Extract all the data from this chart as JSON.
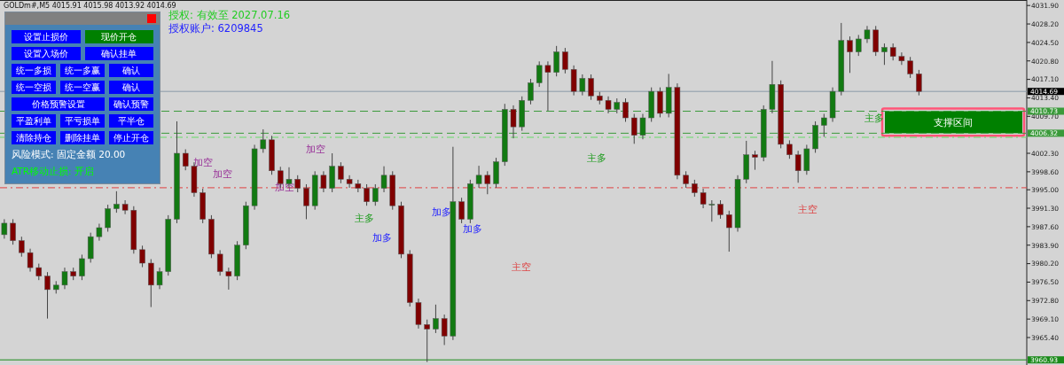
{
  "chart_data": {
    "type": "candlestick",
    "title": "GOLDm#,M5 4015.91 4015.98 4013.92 4014.69",
    "subtitle": "授权: 有效至 2027.07.16",
    "categories": [
      null,
      null,
      null,
      null,
      null,
      null,
      null,
      null,
      null,
      null,
      null,
      null,
      null,
      null,
      null,
      null,
      null,
      null,
      null,
      null,
      null,
      null,
      null,
      null,
      null,
      null,
      null,
      null,
      null,
      null,
      null,
      null,
      null,
      null,
      null,
      null,
      null,
      null,
      null,
      null,
      null,
      null,
      null,
      null,
      null,
      null,
      null,
      null,
      null,
      null,
      null,
      null,
      null,
      null,
      null,
      null,
      null,
      null,
      null,
      null,
      null,
      null,
      null,
      null,
      null,
      null,
      null,
      null,
      null,
      null,
      null,
      null,
      null,
      null,
      null,
      null,
      null,
      null,
      null,
      null,
      null,
      null,
      null,
      null,
      null,
      null,
      null,
      null,
      null,
      null,
      null,
      null,
      null,
      null,
      null,
      null,
      null,
      null,
      null,
      null,
      null,
      null,
      null,
      null,
      null,
      null,
      null,
      null,
      null,
      null,
      null,
      null,
      null,
      null,
      null,
      null,
      null,
      null,
      null
    ],
    "ohlc": [
      [
        3986.0,
        3989.1,
        3985.2,
        3988.3
      ],
      [
        3988.3,
        3989.1,
        3984.0,
        3984.8
      ],
      [
        3984.8,
        3985.6,
        3981.6,
        3982.4
      ],
      [
        3982.4,
        3983.2,
        3978.6,
        3979.4
      ],
      [
        3979.4,
        3980.2,
        3976.9,
        3977.7
      ],
      [
        3977.7,
        3978.5,
        3969.2,
        3975.0
      ],
      [
        3975.0,
        3976.7,
        3974.2,
        3975.9
      ],
      [
        3975.9,
        3979.4,
        3975.1,
        3978.6
      ],
      [
        3978.6,
        3979.4,
        3976.9,
        3977.7
      ],
      [
        3977.7,
        3982.0,
        3976.9,
        3981.2
      ],
      [
        3981.2,
        3986.4,
        3980.4,
        3985.6
      ],
      [
        3985.6,
        3988.2,
        3984.8,
        3987.4
      ],
      [
        3987.4,
        3992.0,
        3986.6,
        3991.2
      ],
      [
        3991.2,
        3994.7,
        3990.4,
        3992.1
      ],
      [
        3992.1,
        3992.9,
        3990.1,
        3990.9
      ],
      [
        3990.9,
        3991.7,
        3982.2,
        3983.0
      ],
      [
        3983.0,
        3983.8,
        3979.5,
        3980.3
      ],
      [
        3980.3,
        3981.1,
        3971.5,
        3975.9
      ],
      [
        3975.9,
        3979.4,
        3975.1,
        3978.6
      ],
      [
        3978.6,
        3989.9,
        3977.8,
        3989.1
      ],
      [
        3989.1,
        4008.7,
        3988.3,
        4002.3
      ],
      [
        4002.3,
        4003.1,
        3998.9,
        3999.7
      ],
      [
        3999.7,
        4000.5,
        3993.6,
        3994.4
      ],
      [
        3994.4,
        3995.2,
        3988.3,
        3989.1
      ],
      [
        3989.1,
        3989.9,
        3981.3,
        3982.1
      ],
      [
        3982.1,
        3982.9,
        3977.8,
        3978.6
      ],
      [
        3978.6,
        3979.4,
        3975.0,
        3977.7
      ],
      [
        3977.7,
        3984.7,
        3976.9,
        3983.9
      ],
      [
        3983.9,
        3992.6,
        3983.1,
        3991.8
      ],
      [
        3991.8,
        4004.0,
        3991.0,
        4003.2
      ],
      [
        4003.2,
        4007.1,
        4002.4,
        4005.0
      ],
      [
        4005.0,
        4005.8,
        3998.0,
        3998.8
      ],
      [
        3998.8,
        3999.6,
        3995.4,
        3996.2
      ],
      [
        3996.2,
        3999.5,
        3995.4,
        3997.1
      ],
      [
        3997.1,
        3997.9,
        3994.5,
        3995.3
      ],
      [
        3995.3,
        3996.1,
        3989.1,
        3991.8
      ],
      [
        3991.8,
        3998.7,
        3991.0,
        3997.9
      ],
      [
        3997.9,
        3998.7,
        3994.5,
        3995.3
      ],
      [
        3995.3,
        4002.3,
        3994.5,
        3999.7
      ],
      [
        3999.7,
        4000.5,
        3996.3,
        3997.1
      ],
      [
        3997.1,
        3997.9,
        3995.4,
        3996.2
      ],
      [
        3996.2,
        3997.0,
        3994.5,
        3995.3
      ],
      [
        3995.3,
        3996.1,
        3991.8,
        3992.6
      ],
      [
        3992.6,
        3996.1,
        3991.8,
        3995.3
      ],
      [
        3995.3,
        3999.7,
        3994.5,
        3997.9
      ],
      [
        3997.9,
        3998.7,
        3991.0,
        3991.8
      ],
      [
        3991.8,
        3992.6,
        3981.3,
        3982.1
      ],
      [
        3982.1,
        3982.9,
        3971.6,
        3972.4
      ],
      [
        3972.4,
        3973.2,
        3967.2,
        3968.0
      ],
      [
        3968.0,
        3969.0,
        3960.5,
        3967.1
      ],
      [
        3967.1,
        3972.0,
        3966.3,
        3969.2
      ],
      [
        3969.2,
        3970.0,
        3963.9,
        3965.7
      ],
      [
        3965.7,
        4003.6,
        3964.9,
        3992.6
      ],
      [
        3992.6,
        3993.4,
        3988.3,
        3989.1
      ],
      [
        3989.1,
        3997.0,
        3988.3,
        3996.2
      ],
      [
        3996.2,
        3999.8,
        3995.4,
        3997.9
      ],
      [
        3997.9,
        3998.7,
        3994.1,
        3996.2
      ],
      [
        3996.2,
        4001.4,
        3995.4,
        4000.6
      ],
      [
        4000.6,
        4012.2,
        3999.8,
        4011.1
      ],
      [
        4011.1,
        4011.9,
        4005.3,
        4007.6
      ],
      [
        4007.6,
        4013.7,
        4006.8,
        4012.9
      ],
      [
        4012.9,
        4017.2,
        4012.1,
        4016.4
      ],
      [
        4016.4,
        4020.7,
        4015.6,
        4019.9
      ],
      [
        4019.9,
        4020.7,
        4010.8,
        4018.5
      ],
      [
        4018.5,
        4023.8,
        4017.7,
        4022.6
      ],
      [
        4022.6,
        4023.4,
        4018.3,
        4019.1
      ],
      [
        4019.1,
        4019.9,
        4013.9,
        4014.7
      ],
      [
        4014.7,
        4018.1,
        4013.9,
        4017.3
      ],
      [
        4017.3,
        4018.1,
        4013.0,
        4013.8
      ],
      [
        4013.8,
        4014.6,
        4012.1,
        4012.9
      ],
      [
        4012.9,
        4013.7,
        4010.3,
        4011.1
      ],
      [
        4011.1,
        4013.3,
        4010.3,
        4012.5
      ],
      [
        4012.5,
        4013.3,
        4008.6,
        4009.4
      ],
      [
        4009.4,
        4010.2,
        4004.2,
        4005.9
      ],
      [
        4005.9,
        4010.2,
        4005.1,
        4009.4
      ],
      [
        4009.4,
        4015.5,
        4008.6,
        4014.7
      ],
      [
        4014.7,
        4015.5,
        4009.5,
        4010.3
      ],
      [
        4010.3,
        4018.2,
        4009.5,
        4015.5
      ],
      [
        4015.5,
        4016.3,
        3997.1,
        3997.9
      ],
      [
        3997.9,
        3998.7,
        3995.4,
        3996.2
      ],
      [
        3996.2,
        3997.0,
        3993.6,
        3994.4
      ],
      [
        3994.4,
        3995.2,
        3991.3,
        3992.1
      ],
      [
        3992.1,
        3992.9,
        3988.6,
        3992.1
      ],
      [
        3992.1,
        3992.9,
        3989.2,
        3990.0
      ],
      [
        3990.0,
        3990.8,
        3982.6,
        3987.4
      ],
      [
        3987.4,
        3997.9,
        3986.6,
        3997.1
      ],
      [
        3997.1,
        4004.8,
        3996.3,
        4002.0
      ],
      [
        4002.0,
        4002.8,
        3999.0,
        4001.5
      ],
      [
        4001.5,
        4011.9,
        4000.7,
        4011.1
      ],
      [
        4011.1,
        4020.8,
        4010.3,
        4016.1
      ],
      [
        4016.1,
        4016.9,
        4003.3,
        4004.1
      ],
      [
        4004.1,
        4004.9,
        4001.2,
        4002.0
      ],
      [
        4002.0,
        4002.8,
        3996.4,
        3998.8
      ],
      [
        3998.8,
        4004.0,
        3998.0,
        4003.2
      ],
      [
        4003.2,
        4008.7,
        4002.4,
        4007.9
      ],
      [
        4007.9,
        4010.2,
        4005.6,
        4009.4
      ],
      [
        4009.4,
        4015.5,
        4008.6,
        4014.7
      ],
      [
        4014.7,
        4028.4,
        4013.9,
        4024.9
      ],
      [
        4024.9,
        4025.7,
        4018.4,
        4022.6
      ],
      [
        4022.6,
        4026.0,
        4021.8,
        4025.2
      ],
      [
        4025.2,
        4027.8,
        4024.4,
        4027.0
      ],
      [
        4027.0,
        4027.8,
        4021.8,
        4022.6
      ],
      [
        4022.6,
        4024.3,
        4020.0,
        4023.5
      ],
      [
        4023.5,
        4024.3,
        4020.9,
        4021.7
      ],
      [
        4021.7,
        4022.5,
        4020.0,
        4020.8
      ],
      [
        4020.8,
        4021.6,
        4017.4,
        4018.2
      ],
      [
        4018.2,
        4019.0,
        4013.9,
        4014.69
      ],
      null,
      null,
      null,
      null,
      null,
      null,
      null,
      null,
      null,
      null,
      null,
      null
    ],
    "ylim": [
      3959.9,
      4033.0
    ],
    "yticks": [
      {
        "value": 4031.9,
        "label": "4031.90"
      },
      {
        "value": 4028.2,
        "label": "4028.20"
      },
      {
        "value": 4024.5,
        "label": "4024.50"
      },
      {
        "value": 4020.8,
        "label": "4020.80"
      },
      {
        "value": 4017.1,
        "label": "4017.10"
      },
      {
        "value": 4013.4,
        "label": "4013.40"
      },
      {
        "value": 4009.7,
        "label": "4009.70"
      },
      {
        "value": 4002.3,
        "label": "4002.30"
      },
      {
        "value": 3998.6,
        "label": "3998.60"
      },
      {
        "value": 3995.0,
        "label": "3995.00"
      },
      {
        "value": 3991.3,
        "label": "3991.30"
      },
      {
        "value": 3987.6,
        "label": "3987.60"
      },
      {
        "value": 3983.9,
        "label": "3983.90"
      },
      {
        "value": 3980.2,
        "label": "3980.20"
      },
      {
        "value": 3976.5,
        "label": "3976.50"
      },
      {
        "value": 3972.8,
        "label": "3972.80"
      },
      {
        "value": 3969.1,
        "label": "3969.10"
      },
      {
        "value": 3965.4,
        "label": "3965.40"
      }
    ],
    "tick_labels": "y",
    "grid": false,
    "ref_lines": [
      {
        "axis": "y",
        "value": 4014.69,
        "label": "4014.69",
        "color": "#8a9aa8",
        "line_style": "solid"
      },
      {
        "axis": "y",
        "value": 4010.73,
        "label": "4010.73",
        "color": "#3a9a3a",
        "line_style": "dashed"
      },
      {
        "axis": "y",
        "value": 4006.32,
        "label": "4006.32",
        "color": "#3a9a3a",
        "line_style": "dashed"
      },
      {
        "axis": "y",
        "value": 4005.5,
        "label": null,
        "color": "#66dd66",
        "line_style": "dashdot"
      },
      {
        "axis": "y",
        "value": 3995.4,
        "label": null,
        "color": "#e04040",
        "line_style": "dashdot"
      },
      {
        "axis": "y",
        "value": 3960.93,
        "label": "3960.93",
        "color": "#1a8a1a",
        "line_style": "solid"
      }
    ],
    "bands": [
      {
        "axis": "y",
        "from": 4006.32,
        "to": 4010.73,
        "label": "支撑区间",
        "color": "#008000"
      }
    ],
    "annotations": [
      "授权账户: 6209845",
      "设置止损价",
      "现价开仓",
      "设置入场价",
      "确认挂单",
      "统一多损",
      "统一多赢",
      "确认",
      "统一空损",
      "统一空赢",
      "确认",
      "价格预警设置",
      "确认预警",
      "平盈利单",
      "平亏损单",
      "平半仓",
      "清除持仓",
      "删除挂单",
      "停止开仓",
      "风险模式: 固定金额 20.00",
      "ATR移动止损: 开启",
      "加空",
      "加空",
      "加空",
      "加空",
      "加多",
      "主多",
      "加多",
      "加多",
      "主空",
      "主多",
      "主空",
      "主多"
    ]
  }
}
